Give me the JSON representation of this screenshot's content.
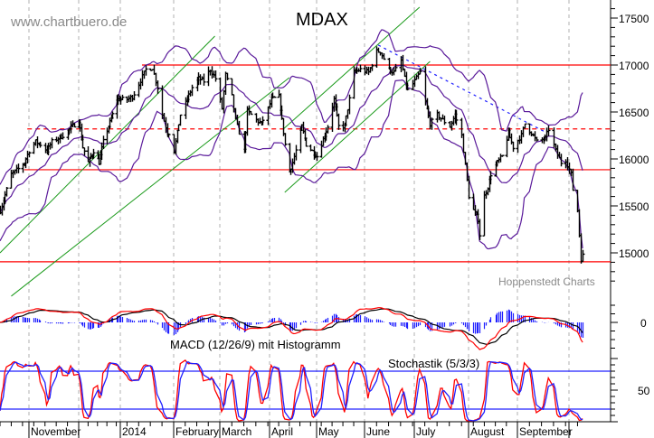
{
  "chart_data": {
    "type": "ohlc",
    "title": "MDAX",
    "watermark": "www.chartbuero.de",
    "source": "Hoppenstedt Charts",
    "colors": {
      "bars": "#000000",
      "bollinger": "#5a1a9a",
      "trendline": "#1a9a1a",
      "level": "#ff0000",
      "downtrend": "#2020ff",
      "macd": "#ff0000",
      "signal": "#000000",
      "histogram": "#2020ff",
      "stoch_k": "#ff0000",
      "stoch_d": "#2020ff",
      "grid": "#b0b0b0"
    },
    "close_approx": [
      [
        "2013-10-14",
        15452
      ],
      [
        "2013-10-18",
        15673
      ],
      [
        "2013-10-21",
        15837
      ],
      [
        "2013-10-25",
        15894
      ],
      [
        "2013-10-29",
        15962
      ],
      [
        "2013-11-01",
        16087
      ],
      [
        "2013-11-05",
        16183
      ],
      [
        "2013-11-08",
        16154
      ],
      [
        "2013-11-12",
        16087
      ],
      [
        "2013-11-15",
        16183
      ],
      [
        "2013-11-19",
        16221
      ],
      [
        "2013-11-22",
        16250
      ],
      [
        "2013-11-26",
        16317
      ],
      [
        "2013-12-02",
        16413
      ],
      [
        "2013-12-05",
        16125
      ],
      [
        "2013-12-09",
        15962
      ],
      [
        "2013-12-13",
        16087
      ],
      [
        "2013-12-17",
        15962
      ],
      [
        "2013-12-20",
        16183
      ],
      [
        "2013-12-27",
        16471
      ],
      [
        "2013-12-30",
        16635
      ],
      [
        "2014-01-06",
        16635
      ],
      [
        "2014-01-09",
        16663
      ],
      [
        "2014-01-13",
        16798
      ],
      [
        "2014-01-17",
        16952
      ],
      [
        "2014-01-21",
        16971
      ],
      [
        "2014-01-24",
        16760
      ],
      [
        "2014-01-27",
        16471
      ],
      [
        "2014-01-30",
        16279
      ],
      [
        "2014-01-31",
        16279
      ],
      [
        "2014-02-03",
        16087
      ],
      [
        "2014-02-07",
        16471
      ],
      [
        "2014-02-11",
        16635
      ],
      [
        "2014-02-14",
        16760
      ],
      [
        "2014-02-18",
        16856
      ],
      [
        "2014-02-21",
        16827
      ],
      [
        "2014-02-25",
        16952
      ],
      [
        "2014-02-28",
        16856
      ],
      [
        "2014-03-04",
        16538
      ],
      [
        "2014-03-06",
        16894
      ],
      [
        "2014-03-10",
        16663
      ],
      [
        "2014-03-12",
        16413
      ],
      [
        "2014-03-17",
        16087
      ],
      [
        "2014-03-19",
        16510
      ],
      [
        "2014-03-24",
        16413
      ],
      [
        "2014-03-27",
        16375
      ],
      [
        "2014-03-31",
        16538
      ],
      [
        "2014-04-02",
        16635
      ],
      [
        "2014-04-07",
        16663
      ],
      [
        "2014-04-09",
        16413
      ],
      [
        "2014-04-11",
        16154
      ],
      [
        "2014-04-14",
        15865
      ],
      [
        "2014-04-16",
        15962
      ],
      [
        "2014-04-22",
        16346
      ],
      [
        "2014-04-25",
        16154
      ],
      [
        "2014-05-02",
        16029
      ],
      [
        "2014-05-09",
        16346
      ],
      [
        "2014-05-13",
        16635
      ],
      [
        "2014-05-16",
        16346
      ],
      [
        "2014-05-20",
        16346
      ],
      [
        "2014-05-23",
        16635
      ],
      [
        "2014-05-26",
        16923
      ],
      [
        "2014-05-30",
        16952
      ],
      [
        "2014-06-04",
        16923
      ],
      [
        "2014-06-09",
        17144
      ],
      [
        "2014-06-11",
        17144
      ],
      [
        "2014-06-16",
        16952
      ],
      [
        "2014-06-19",
        16923
      ],
      [
        "2014-06-23",
        17048
      ],
      [
        "2014-06-25",
        16856
      ],
      [
        "2014-06-27",
        16731
      ],
      [
        "2014-06-30",
        16798
      ],
      [
        "2014-07-04",
        16923
      ],
      [
        "2014-07-07",
        16606
      ],
      [
        "2014-07-10",
        16375
      ],
      [
        "2014-07-14",
        16471
      ],
      [
        "2014-07-17",
        16413
      ],
      [
        "2014-07-21",
        16346
      ],
      [
        "2014-07-24",
        16471
      ],
      [
        "2014-07-28",
        16250
      ],
      [
        "2014-07-30",
        15933
      ],
      [
        "2014-08-01",
        15606
      ],
      [
        "2014-08-04",
        15452
      ],
      [
        "2014-08-07",
        15356
      ],
      [
        "2014-08-08",
        15192
      ],
      [
        "2014-08-11",
        15606
      ],
      [
        "2014-08-13",
        15702
      ],
      [
        "2014-08-15",
        15837
      ],
      [
        "2014-08-19",
        15962
      ],
      [
        "2014-08-22",
        16029
      ],
      [
        "2014-08-26",
        16279
      ],
      [
        "2014-08-29",
        16125
      ],
      [
        "2014-09-03",
        16250
      ],
      [
        "2014-09-05",
        16375
      ],
      [
        "2014-09-09",
        16279
      ],
      [
        "2014-09-12",
        16183
      ],
      [
        "2014-09-17",
        16221
      ],
      [
        "2014-09-19",
        16317
      ],
      [
        "2014-09-23",
        16087
      ],
      [
        "2014-09-26",
        15962
      ],
      [
        "2014-09-29",
        15990
      ],
      [
        "2014-10-02",
        15837
      ],
      [
        "2014-10-03",
        15673
      ],
      [
        "2014-10-06",
        15452
      ],
      [
        "2014-10-08",
        14933
      ],
      [
        "2014-10-09",
        14971
      ]
    ],
    "price_axis": {
      "ticks": [
        15000,
        15500,
        16000,
        16500,
        17000,
        17500
      ],
      "labels": [
        "15000",
        "15500",
        "16000",
        "16500",
        "17000",
        "17500"
      ]
    },
    "x_axis": {
      "month_starts": [
        "2013-11-01",
        "2013-12-02",
        "2014-01-02",
        "2014-02-03",
        "2014-03-03",
        "2014-04-01",
        "2014-05-02",
        "2014-06-02",
        "2014-07-01",
        "2014-08-01",
        "2014-09-01",
        "2014-10-01"
      ],
      "labels": [
        {
          "date": "2013-11-01",
          "text": "November"
        },
        {
          "date": "2014-01-02",
          "text": "2014"
        },
        {
          "date": "2014-02-03",
          "text": "February"
        },
        {
          "date": "2014-03-03",
          "text": "March"
        },
        {
          "date": "2014-04-01",
          "text": "April"
        },
        {
          "date": "2014-05-02",
          "text": "May"
        },
        {
          "date": "2014-06-02",
          "text": "June"
        },
        {
          "date": "2014-07-01",
          "text": "July"
        },
        {
          "date": "2014-08-01",
          "text": "August"
        },
        {
          "date": "2014-09-01",
          "text": "September"
        }
      ]
    },
    "levels": [
      {
        "value": 17000,
        "from": "2014-01-15",
        "style": "solid"
      },
      {
        "value": 16320,
        "from": "2013-10-31",
        "style": "dashed"
      },
      {
        "value": 15885,
        "from": "2013-10-29",
        "style": "solid"
      },
      {
        "value": 14905,
        "from": "2013-10-14",
        "style": "solid"
      }
    ],
    "trendlines": [
      {
        "from": [
          "2013-10-14",
          15000
        ],
        "to": [
          "2014-02-28",
          17308
        ],
        "style": "solid"
      },
      {
        "from": [
          "2013-10-21",
          14539
        ],
        "to": [
          "2014-04-14",
          16865
        ],
        "style": "solid"
      },
      {
        "from": [
          "2014-04-10",
          16317
        ],
        "to": [
          "2014-07-04",
          17615
        ],
        "style": "solid"
      },
      {
        "from": [
          "2014-04-11",
          15644
        ],
        "to": [
          "2014-07-10",
          17038
        ],
        "style": "solid"
      }
    ],
    "downtrend": {
      "from": [
        "2014-06-10",
        17212
      ],
      "to": [
        "2014-09-18",
        16279
      ],
      "style": "dotted"
    },
    "bollinger": {
      "period": 20,
      "sd": 2
    },
    "macd": {
      "label": "MACD (12/26/9) mit Histogramm",
      "fast": 12,
      "slow": 26,
      "signal": 9,
      "axis_label": "0"
    },
    "stochastic": {
      "label": "Stochastik (5/3/3)",
      "k": 5,
      "smooth": 3,
      "d": 3,
      "levels": [
        80,
        20
      ],
      "axis_label": "50",
      "range": [
        0,
        100
      ]
    }
  }
}
